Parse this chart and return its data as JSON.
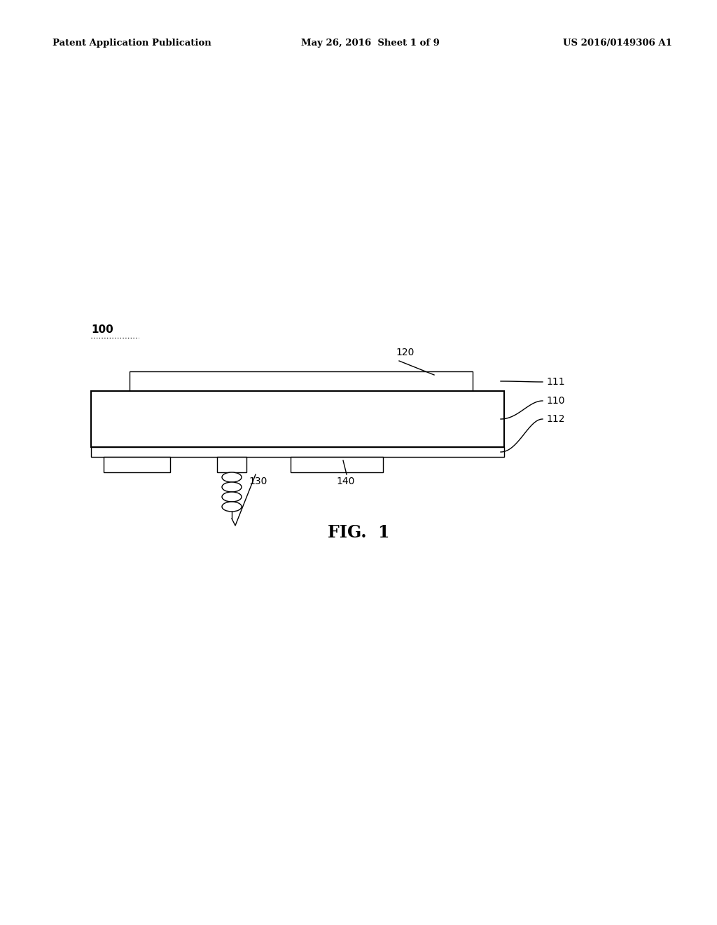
{
  "bg_color": "#ffffff",
  "line_color": "#000000",
  "header_left": "Patent Application Publication",
  "header_mid": "May 26, 2016  Sheet 1 of 9",
  "header_right": "US 2016/0149306 A1",
  "fig_label": "FIG.  1",
  "label_100": "100",
  "label_120": "120",
  "label_111": "111",
  "label_110": "110",
  "label_112": "112",
  "label_130": "130",
  "label_140": "140"
}
